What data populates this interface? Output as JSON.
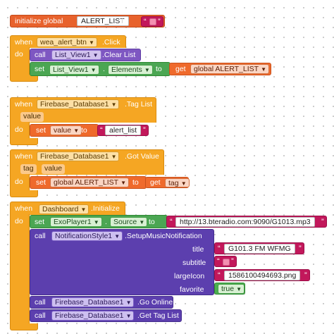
{
  "init_block": {
    "keyword": "initialize global",
    "var_name": "ALERT_LIST",
    "to": "to",
    "value_quote_open": "“",
    "value_quote_close": "”"
  },
  "wea_click": {
    "when": "when",
    "component": "wea_alert_btn",
    "event": ".Click",
    "do": "do",
    "clear_call": "call",
    "clear_component": "List_View1",
    "clear_method": ".Clear List",
    "set_kw": "set",
    "set_component": "List_View1",
    "set_dot": ".",
    "set_property": "Elements",
    "to": "to",
    "get_kw": "get",
    "get_var": "global ALERT_LIST"
  },
  "firebase_taglist": {
    "when": "when",
    "component": "Firebase_Database1",
    "event": ".Tag List",
    "param": "value",
    "do": "do",
    "set_kw": "set",
    "set_var": "value",
    "to": "to",
    "text_value": "alert_list"
  },
  "firebase_gotvalue": {
    "when": "when",
    "component": "Firebase_Database1",
    "event": ".Got Value",
    "param1": "tag",
    "param2": "value",
    "do": "do",
    "set_kw": "set",
    "set_var": "global ALERT_LIST",
    "to": "to",
    "get_kw": "get",
    "get_var": "tag"
  },
  "dashboard_init": {
    "when": "when",
    "component": "Dashboard",
    "event": ".Initialize",
    "do": "do",
    "set_kw": "set",
    "set_component": "ExoPlayer1",
    "set_dot": ".",
    "set_property": "Source",
    "to": "to",
    "source_url": "http://13.bteradio.com:9090/G1013.mp3",
    "notif_call": "call",
    "notif_component": "NotificationStyle1",
    "notif_method": ".SetupMusicNotification",
    "arg_title_label": "title",
    "arg_title_value": "G101.3 FM WFMG",
    "arg_subtitle_label": "subtitle",
    "arg_largeicon_label": "largeIcon",
    "arg_largeicon_value": "1586100494693.png",
    "arg_favorite_label": "favorite",
    "arg_favorite_value": "true",
    "online_call": "call",
    "online_component": "Firebase_Database1",
    "online_method": ".Go Online",
    "taglist_call": "call",
    "taglist_component": "Firebase_Database1",
    "taglist_method": ".Get Tag List"
  },
  "colors": {
    "variable": "#e8622c",
    "event": "#f5a623",
    "component_call": "#7e57c2",
    "text": "#c2185b",
    "boolean": "#4caf50"
  },
  "icons": {
    "dropdown": "chevron-down-icon"
  }
}
